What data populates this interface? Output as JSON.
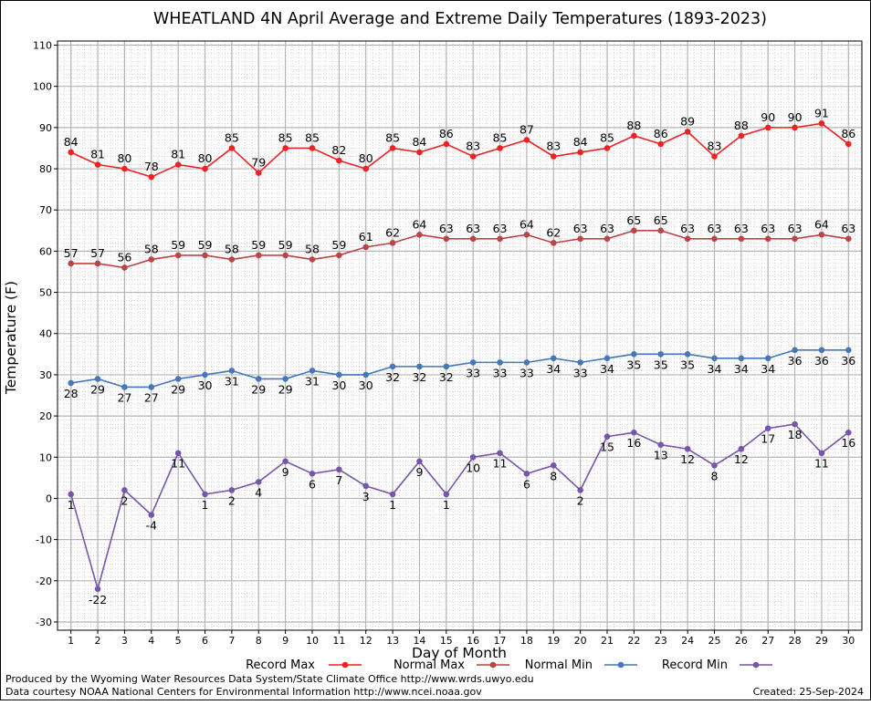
{
  "chart_data": {
    "type": "line",
    "title": "WHEATLAND 4N April Average and Extreme Daily Temperatures (1893-2023)",
    "xlabel": "Day of Month",
    "ylabel": "Temperature (F)",
    "ylim": [
      -32,
      111
    ],
    "yticks": [
      -30,
      -20,
      -10,
      0,
      10,
      20,
      30,
      40,
      50,
      60,
      70,
      80,
      90,
      100,
      110
    ],
    "x": [
      1,
      2,
      3,
      4,
      5,
      6,
      7,
      8,
      9,
      10,
      11,
      12,
      13,
      14,
      15,
      16,
      17,
      18,
      19,
      20,
      21,
      22,
      23,
      24,
      25,
      26,
      27,
      28,
      29,
      30
    ],
    "grid": true,
    "legend_position": "bottom",
    "series": [
      {
        "name": "Record Max",
        "color": "#ee2222",
        "label_pos": "above",
        "values": [
          84,
          81,
          80,
          78,
          81,
          80,
          85,
          79,
          85,
          85,
          82,
          80,
          85,
          84,
          86,
          83,
          85,
          87,
          83,
          84,
          85,
          88,
          86,
          89,
          83,
          88,
          90,
          90,
          91,
          86
        ]
      },
      {
        "name": "Normal Max",
        "color": "#bb4444",
        "label_pos": "above",
        "values": [
          57,
          57,
          56,
          58,
          59,
          59,
          58,
          59,
          59,
          58,
          59,
          61,
          62,
          64,
          63,
          63,
          63,
          64,
          62,
          63,
          63,
          65,
          65,
          63,
          63,
          63,
          63,
          63,
          64,
          63
        ]
      },
      {
        "name": "Normal Min",
        "color": "#4477bb",
        "label_pos": "below",
        "values": [
          28,
          29,
          27,
          27,
          29,
          30,
          31,
          29,
          29,
          31,
          30,
          30,
          32,
          32,
          32,
          33,
          33,
          33,
          34,
          33,
          34,
          35,
          35,
          35,
          34,
          34,
          34,
          36,
          36,
          36
        ]
      },
      {
        "name": "Record Min",
        "color": "#7755aa",
        "label_pos": "below",
        "values": [
          1,
          -22,
          2,
          -4,
          11,
          1,
          2,
          4,
          9,
          6,
          7,
          3,
          1,
          9,
          1,
          10,
          11,
          6,
          8,
          2,
          15,
          16,
          13,
          12,
          8,
          12,
          17,
          18,
          11,
          16
        ]
      }
    ]
  },
  "footer": {
    "produced_by": "Produced by the Wyoming Water Resources Data System/State Climate Office http://www.wrds.uwyo.edu",
    "data_courtesy": "Data courtesy NOAA National Centers for Environmental Information http://www.ncei.noaa.gov",
    "created": "Created:  25-Sep-2024"
  }
}
